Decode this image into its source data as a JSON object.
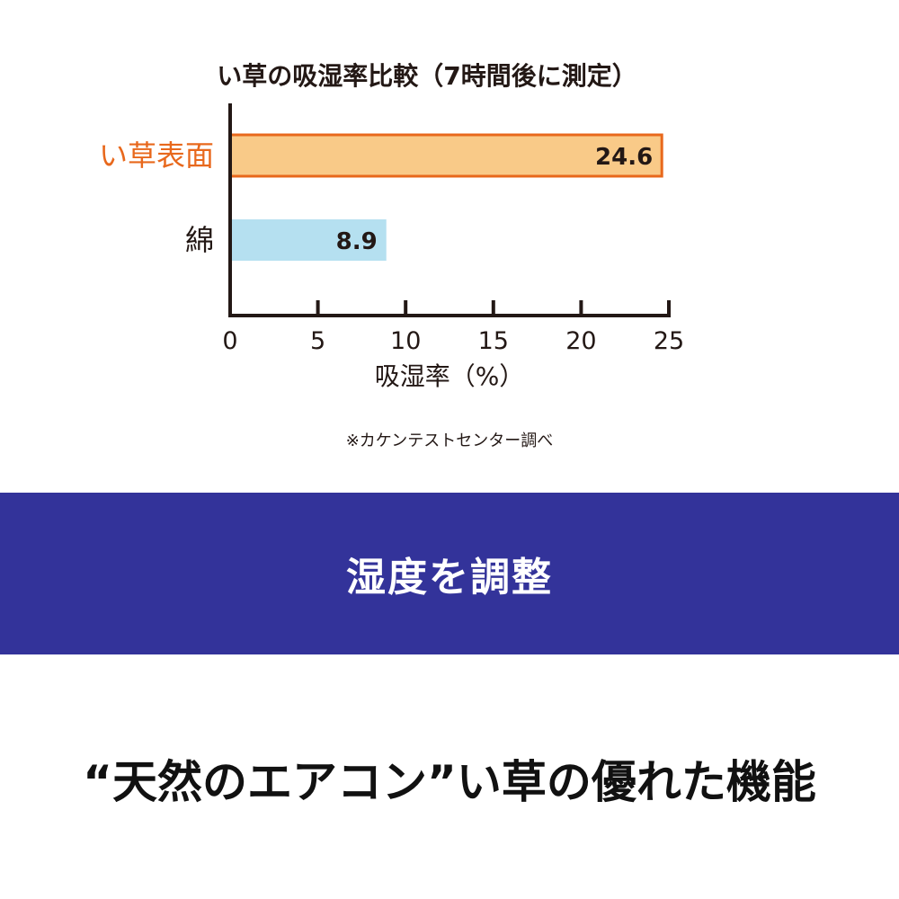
{
  "chart_data": {
    "type": "bar",
    "orientation": "horizontal",
    "title": "い草の吸湿率比較（7時間後に測定）",
    "categories": [
      "い草表面",
      "綿"
    ],
    "values": [
      24.6,
      8.9
    ],
    "data_labels": [
      "24.6",
      "8.9"
    ],
    "xlabel": "吸湿率（%）",
    "ylabel": "",
    "xlim": [
      0,
      25
    ],
    "xticks": [
      "0",
      "5",
      "10",
      "15",
      "20",
      "25"
    ],
    "grid": false,
    "colors": {
      "い草表面": {
        "fill": "#f9ca88",
        "stroke": "#e8681c",
        "label": "#e8681c"
      },
      "綿": {
        "fill": "#b5e0f0",
        "stroke": "none",
        "label": "#231815"
      }
    },
    "note": "※カケンテストセンター調べ"
  },
  "banner": {
    "text": "湿度を調整",
    "color": "#33339a"
  },
  "tagline": "“天然のエアコン”い草の優れた機能"
}
